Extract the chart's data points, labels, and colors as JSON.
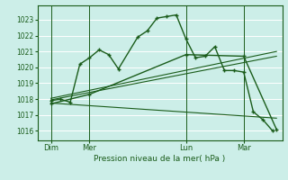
{
  "title": "Pression niveau de la mer( hPa )",
  "bg_color": "#cceee8",
  "grid_color": "#ffffff",
  "line_color": "#1a5c1a",
  "yticks": [
    1016,
    1017,
    1018,
    1019,
    1020,
    1021,
    1022,
    1023
  ],
  "ylim": [
    1015.4,
    1023.9
  ],
  "xlim": [
    -0.2,
    12.5
  ],
  "xtick_labels": [
    "Dim",
    "Mer",
    "Lun",
    "Mar"
  ],
  "xtick_positions": [
    0.5,
    2.5,
    7.5,
    10.5
  ],
  "vline_positions": [
    0.5,
    2.5,
    7.5,
    10.5
  ],
  "series1_x": [
    0.5,
    1.0,
    1.5,
    2.0,
    2.5,
    3.0,
    3.5,
    4.0,
    5.0,
    5.5,
    6.0,
    6.5,
    7.0,
    7.5,
    8.0,
    8.5,
    9.0,
    9.5,
    10.0,
    10.5,
    11.0,
    11.5,
    12.0
  ],
  "series1_y": [
    1017.9,
    1018.0,
    1017.8,
    1020.2,
    1020.6,
    1021.1,
    1020.8,
    1019.9,
    1021.9,
    1022.3,
    1023.1,
    1023.2,
    1023.3,
    1021.8,
    1020.6,
    1020.7,
    1021.3,
    1019.8,
    1019.8,
    1019.7,
    1017.2,
    1016.7,
    1016.0
  ],
  "series2_x": [
    0.5,
    2.5,
    7.5,
    10.5,
    12.2
  ],
  "series2_y": [
    1017.7,
    1018.3,
    1020.8,
    1020.7,
    1016.1
  ],
  "series3_x": [
    0.5,
    12.2
  ],
  "series3_y": [
    1018.05,
    1021.0
  ],
  "series4_x": [
    0.5,
    12.2
  ],
  "series4_y": [
    1017.95,
    1020.7
  ],
  "series5_x": [
    0.5,
    12.2
  ],
  "series5_y": [
    1017.75,
    1016.8
  ]
}
